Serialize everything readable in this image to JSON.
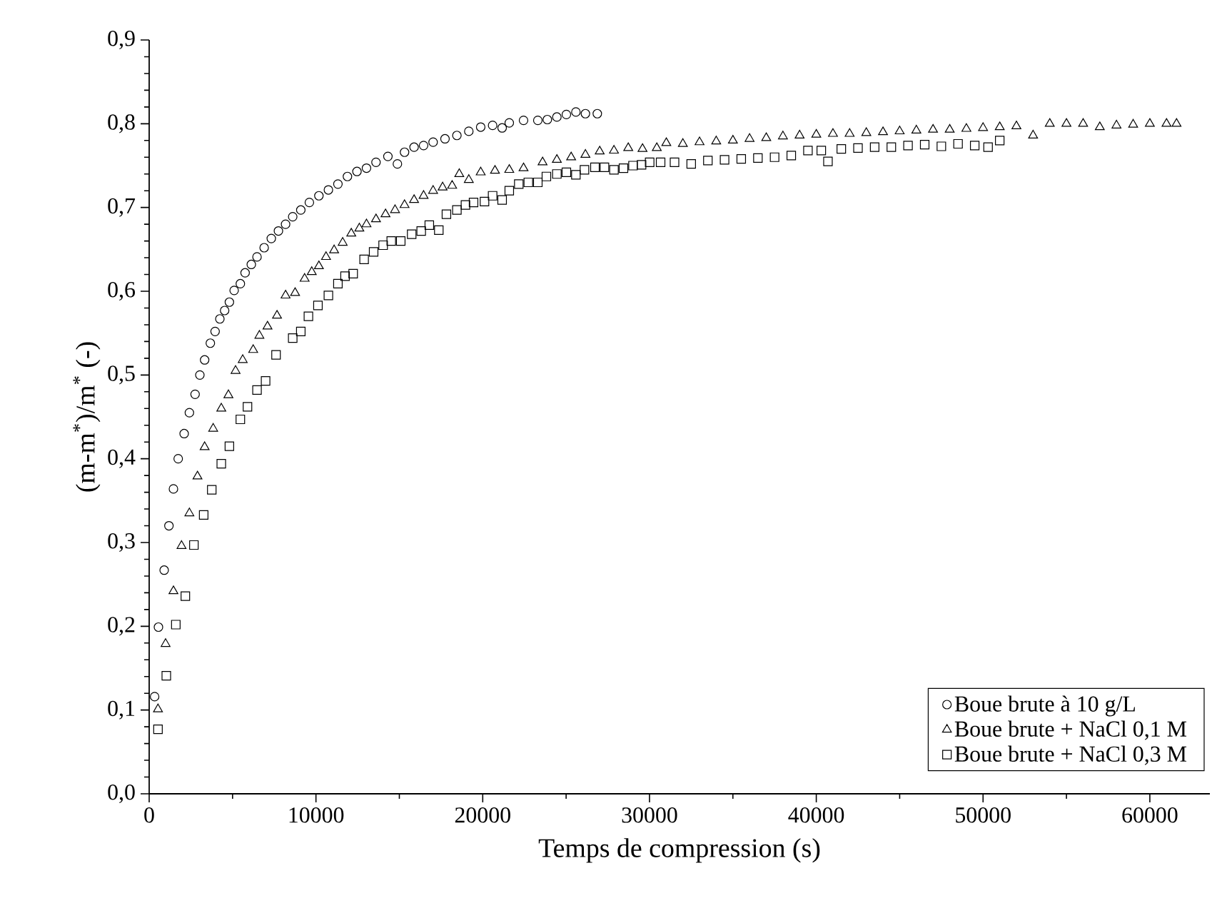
{
  "chart_data": {
    "type": "scatter",
    "xlabel": "Temps de compression (s)",
    "ylabel": "(m-m$^{*}$)/m$^{*}$ (-)",
    "xlim": [
      0,
      63600
    ],
    "ylim": [
      0,
      0.9
    ],
    "xticks": [
      0,
      10000,
      20000,
      30000,
      40000,
      50000,
      60000
    ],
    "yticks": [
      {
        "value": 0,
        "label": "0,0"
      },
      {
        "value": 0.1,
        "label": "0,1"
      },
      {
        "value": 0.2,
        "label": "0,2"
      },
      {
        "value": 0.3,
        "label": "0,3"
      },
      {
        "value": 0.4,
        "label": "0,4"
      },
      {
        "value": 0.5,
        "label": "0,5"
      },
      {
        "value": 0.6,
        "label": "0,6"
      },
      {
        "value": 0.7,
        "label": "0,7"
      },
      {
        "value": 0.8,
        "label": "0,8"
      },
      {
        "value": 0.9,
        "label": "0,9"
      }
    ],
    "grid": false,
    "legend": "bottom right",
    "series": [
      {
        "name": "Boue brute à 10 g/L",
        "color": "#000000",
        "marker": "circle",
        "x": [
          326,
          556,
          899,
          1184,
          1455,
          1740,
          2097,
          2411,
          2753,
          3039,
          3325,
          3667,
          3953,
          4238,
          4524,
          4809,
          5095,
          5466,
          5752,
          6123,
          6466,
          6894,
          7322,
          7750,
          8178,
          8606,
          9091,
          9605,
          10176,
          10746,
          11317,
          11888,
          12459,
          13030,
          13600,
          14314,
          14884,
          15312,
          15883,
          16454,
          17024,
          17738,
          18451,
          19165,
          19878,
          20592,
          21163,
          21591,
          22447,
          23303,
          23874,
          24445,
          25015,
          25586,
          26157,
          26870
        ],
        "values": [
          0.116,
          0.199,
          0.267,
          0.32,
          0.364,
          0.4,
          0.43,
          0.455,
          0.477,
          0.5,
          0.518,
          0.538,
          0.552,
          0.567,
          0.577,
          0.587,
          0.601,
          0.609,
          0.622,
          0.632,
          0.641,
          0.652,
          0.663,
          0.672,
          0.68,
          0.689,
          0.697,
          0.706,
          0.714,
          0.721,
          0.728,
          0.737,
          0.743,
          0.747,
          0.754,
          0.761,
          0.752,
          0.766,
          0.772,
          0.774,
          0.778,
          0.782,
          0.786,
          0.791,
          0.796,
          0.798,
          0.795,
          0.801,
          0.804,
          0.804,
          0.805,
          0.808,
          0.811,
          0.814,
          0.812,
          0.812
        ]
      },
      {
        "name": "Boue brute + NaCl 0,1 M",
        "color": "#000000",
        "marker": "triangle",
        "x": [
          528,
          984,
          1455,
          1940,
          2411,
          2896,
          3325,
          3838,
          4324,
          4752,
          5180,
          5609,
          6237,
          6609,
          7094,
          7665,
          8178,
          8749,
          9320,
          9748,
          10176,
          10604,
          11089,
          11603,
          12117,
          12602,
          13030,
          13600,
          14171,
          14742,
          15312,
          15883,
          16454,
          17024,
          17595,
          18166,
          18594,
          19165,
          19878,
          20734,
          21591,
          22447,
          23588,
          24445,
          25301,
          26157,
          27013,
          27869,
          28725,
          29581,
          30437,
          31008,
          32000,
          33000,
          34000,
          35000,
          36000,
          37000,
          38000,
          39000,
          40000,
          41000,
          42000,
          43000,
          44000,
          45000,
          46000,
          47000,
          48000,
          49000,
          50000,
          51000,
          52000,
          53000,
          54000,
          55000,
          56000,
          57000,
          58000,
          59000,
          60000,
          61000,
          61600
        ],
        "values": [
          0.101,
          0.179,
          0.242,
          0.296,
          0.335,
          0.379,
          0.414,
          0.436,
          0.46,
          0.476,
          0.505,
          0.518,
          0.53,
          0.547,
          0.558,
          0.571,
          0.595,
          0.598,
          0.615,
          0.623,
          0.63,
          0.641,
          0.649,
          0.658,
          0.669,
          0.675,
          0.68,
          0.686,
          0.692,
          0.697,
          0.703,
          0.709,
          0.714,
          0.72,
          0.724,
          0.726,
          0.74,
          0.733,
          0.742,
          0.744,
          0.745,
          0.747,
          0.754,
          0.757,
          0.76,
          0.763,
          0.767,
          0.768,
          0.771,
          0.77,
          0.771,
          0.777,
          0.776,
          0.778,
          0.779,
          0.78,
          0.782,
          0.783,
          0.785,
          0.786,
          0.787,
          0.788,
          0.788,
          0.789,
          0.79,
          0.791,
          0.792,
          0.793,
          0.793,
          0.794,
          0.795,
          0.796,
          0.797,
          0.786,
          0.8,
          0.8,
          0.8,
          0.796,
          0.798,
          0.799,
          0.8,
          0.8,
          0.8
        ]
      },
      {
        "name": "Boue brute + NaCl 0,3 M",
        "color": "#000000",
        "marker": "square",
        "x": [
          528,
          1027,
          1598,
          2169,
          2682,
          3268,
          3753,
          4324,
          4809,
          5466,
          5894,
          6466,
          6980,
          7607,
          8606,
          9091,
          9548,
          10119,
          10746,
          11317,
          11745,
          12231,
          12887,
          13458,
          14028,
          14514,
          15084,
          15740,
          16311,
          16796,
          17367,
          17823,
          18451,
          18965,
          19450,
          20106,
          20592,
          21163,
          21591,
          22162,
          22733,
          23303,
          23817,
          24445,
          25015,
          25586,
          26100,
          26728,
          27299,
          27869,
          28440,
          29011,
          29524,
          30009,
          30666,
          31500,
          32500,
          33500,
          34500,
          35500,
          36500,
          37500,
          38500,
          39500,
          40300,
          40700,
          41500,
          42500,
          43500,
          44500,
          45500,
          46500,
          47500,
          48500,
          49500,
          50300,
          51000
        ],
        "values": [
          0.077,
          0.141,
          0.202,
          0.236,
          0.297,
          0.333,
          0.363,
          0.394,
          0.415,
          0.447,
          0.462,
          0.482,
          0.493,
          0.524,
          0.544,
          0.552,
          0.57,
          0.583,
          0.595,
          0.609,
          0.618,
          0.621,
          0.638,
          0.647,
          0.655,
          0.66,
          0.66,
          0.668,
          0.672,
          0.679,
          0.673,
          0.692,
          0.697,
          0.703,
          0.706,
          0.707,
          0.714,
          0.709,
          0.72,
          0.728,
          0.73,
          0.73,
          0.737,
          0.74,
          0.742,
          0.739,
          0.745,
          0.748,
          0.748,
          0.745,
          0.747,
          0.75,
          0.751,
          0.754,
          0.754,
          0.754,
          0.752,
          0.756,
          0.757,
          0.758,
          0.759,
          0.76,
          0.762,
          0.768,
          0.768,
          0.755,
          0.77,
          0.771,
          0.772,
          0.772,
          0.774,
          0.775,
          0.773,
          0.776,
          0.774,
          0.772,
          0.78
        ]
      }
    ]
  }
}
